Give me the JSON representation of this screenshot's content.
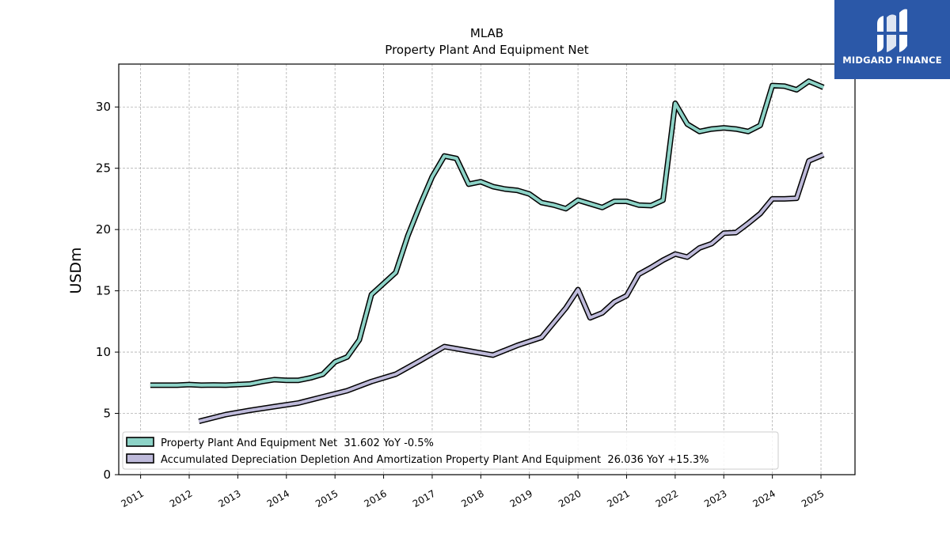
{
  "brand": {
    "name": "MIDGARD FINANCE",
    "bg_color": "#2b58a8",
    "icon": "midgard-logo-icon"
  },
  "chart_data": {
    "type": "line",
    "title": "MLAB",
    "subtitle": "Property Plant And Equipment Net",
    "xlabel": "",
    "ylabel": "USDm",
    "xlim": [
      2010.55,
      2025.7
    ],
    "ylim": [
      0,
      33.5
    ],
    "x_ticks": [
      2011,
      2012,
      2013,
      2014,
      2015,
      2016,
      2017,
      2018,
      2019,
      2020,
      2021,
      2022,
      2023,
      2024,
      2025
    ],
    "y_ticks": [
      0,
      5,
      10,
      15,
      20,
      25,
      30
    ],
    "grid": true,
    "legend_position": "lower-left",
    "series": [
      {
        "name": "Property Plant And Equipment Net  31.602 YoY -0.5%",
        "color": "#8dd3c7",
        "points": [
          [
            2011.2,
            7.3
          ],
          [
            2011.5,
            7.3
          ],
          [
            2011.75,
            7.3
          ],
          [
            2012.0,
            7.35
          ],
          [
            2012.25,
            7.3
          ],
          [
            2012.5,
            7.32
          ],
          [
            2012.75,
            7.3
          ],
          [
            2013.0,
            7.35
          ],
          [
            2013.25,
            7.4
          ],
          [
            2013.5,
            7.6
          ],
          [
            2013.75,
            7.75
          ],
          [
            2014.0,
            7.7
          ],
          [
            2014.25,
            7.7
          ],
          [
            2014.5,
            7.9
          ],
          [
            2014.75,
            8.2
          ],
          [
            2015.0,
            9.2
          ],
          [
            2015.25,
            9.6
          ],
          [
            2015.5,
            11.0
          ],
          [
            2015.75,
            14.7
          ],
          [
            2016.0,
            15.6
          ],
          [
            2016.25,
            16.5
          ],
          [
            2016.5,
            19.5
          ],
          [
            2016.75,
            22.0
          ],
          [
            2017.0,
            24.3
          ],
          [
            2017.25,
            26.0
          ],
          [
            2017.5,
            25.8
          ],
          [
            2017.75,
            23.7
          ],
          [
            2018.0,
            23.9
          ],
          [
            2018.25,
            23.5
          ],
          [
            2018.5,
            23.3
          ],
          [
            2018.75,
            23.2
          ],
          [
            2019.0,
            22.9
          ],
          [
            2019.25,
            22.2
          ],
          [
            2019.5,
            22.0
          ],
          [
            2019.75,
            21.7
          ],
          [
            2020.0,
            22.4
          ],
          [
            2020.25,
            22.1
          ],
          [
            2020.5,
            21.8
          ],
          [
            2020.75,
            22.3
          ],
          [
            2021.0,
            22.3
          ],
          [
            2021.25,
            22.0
          ],
          [
            2021.5,
            21.95
          ],
          [
            2021.75,
            22.4
          ],
          [
            2022.0,
            30.3
          ],
          [
            2022.25,
            28.6
          ],
          [
            2022.5,
            28.0
          ],
          [
            2022.75,
            28.2
          ],
          [
            2023.0,
            28.3
          ],
          [
            2023.25,
            28.2
          ],
          [
            2023.5,
            28.0
          ],
          [
            2023.75,
            28.5
          ],
          [
            2024.0,
            31.75
          ],
          [
            2024.25,
            31.7
          ],
          [
            2024.5,
            31.4
          ],
          [
            2024.75,
            32.1
          ],
          [
            2025.05,
            31.6
          ]
        ]
      },
      {
        "name": "Accumulated Depreciation Depletion And Amortization Property Plant And Equipment  26.036 YoY +15.3%",
        "color": "#bebada",
        "points": [
          [
            2012.2,
            4.35
          ],
          [
            2012.75,
            4.9
          ],
          [
            2013.25,
            5.25
          ],
          [
            2013.75,
            5.55
          ],
          [
            2014.25,
            5.85
          ],
          [
            2014.75,
            6.35
          ],
          [
            2015.25,
            6.85
          ],
          [
            2015.75,
            7.6
          ],
          [
            2016.25,
            8.2
          ],
          [
            2016.75,
            9.3
          ],
          [
            2017.25,
            10.45
          ],
          [
            2017.75,
            10.1
          ],
          [
            2018.25,
            9.75
          ],
          [
            2018.75,
            10.55
          ],
          [
            2019.25,
            11.2
          ],
          [
            2019.75,
            13.6
          ],
          [
            2020.0,
            15.1
          ],
          [
            2020.25,
            12.8
          ],
          [
            2020.5,
            13.2
          ],
          [
            2020.75,
            14.1
          ],
          [
            2021.0,
            14.6
          ],
          [
            2021.25,
            16.35
          ],
          [
            2021.5,
            16.9
          ],
          [
            2021.75,
            17.5
          ],
          [
            2022.0,
            18.0
          ],
          [
            2022.25,
            17.75
          ],
          [
            2022.5,
            18.5
          ],
          [
            2022.75,
            18.85
          ],
          [
            2023.0,
            19.7
          ],
          [
            2023.25,
            19.75
          ],
          [
            2023.5,
            20.5
          ],
          [
            2023.75,
            21.3
          ],
          [
            2024.0,
            22.5
          ],
          [
            2024.25,
            22.5
          ],
          [
            2024.5,
            22.55
          ],
          [
            2024.75,
            25.6
          ],
          [
            2025.05,
            26.1
          ]
        ]
      }
    ]
  }
}
